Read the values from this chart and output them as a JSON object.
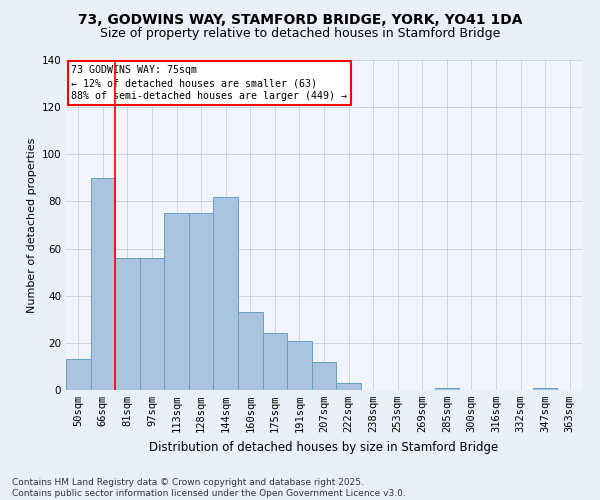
{
  "title_line1": "73, GODWINS WAY, STAMFORD BRIDGE, YORK, YO41 1DA",
  "title_line2": "Size of property relative to detached houses in Stamford Bridge",
  "xlabel": "Distribution of detached houses by size in Stamford Bridge",
  "ylabel": "Number of detached properties",
  "bar_labels": [
    "50sqm",
    "66sqm",
    "81sqm",
    "97sqm",
    "113sqm",
    "128sqm",
    "144sqm",
    "160sqm",
    "175sqm",
    "191sqm",
    "207sqm",
    "222sqm",
    "238sqm",
    "253sqm",
    "269sqm",
    "285sqm",
    "300sqm",
    "316sqm",
    "332sqm",
    "347sqm",
    "363sqm"
  ],
  "bar_values": [
    13,
    90,
    56,
    56,
    75,
    75,
    82,
    33,
    24,
    21,
    12,
    3,
    0,
    0,
    0,
    1,
    0,
    0,
    0,
    1,
    0
  ],
  "bar_color": "#aac4e0",
  "bar_edge_color": "#6a9fc0",
  "ylim": [
    0,
    140
  ],
  "yticks": [
    0,
    20,
    40,
    60,
    80,
    100,
    120,
    140
  ],
  "red_line_x": 1.5,
  "annotation_text": "73 GODWINS WAY: 75sqm\n← 12% of detached houses are smaller (63)\n88% of semi-detached houses are larger (449) →",
  "footer_text": "Contains HM Land Registry data © Crown copyright and database right 2025.\nContains public sector information licensed under the Open Government Licence v3.0.",
  "bg_color": "#eaf0f8",
  "plot_bg_color": "#f0f4fb",
  "grid_color": "#c8d0dc",
  "title_fontsize": 10,
  "subtitle_fontsize": 9,
  "ylabel_fontsize": 8,
  "xlabel_fontsize": 8.5,
  "tick_fontsize": 7.5,
  "footer_fontsize": 6.5
}
